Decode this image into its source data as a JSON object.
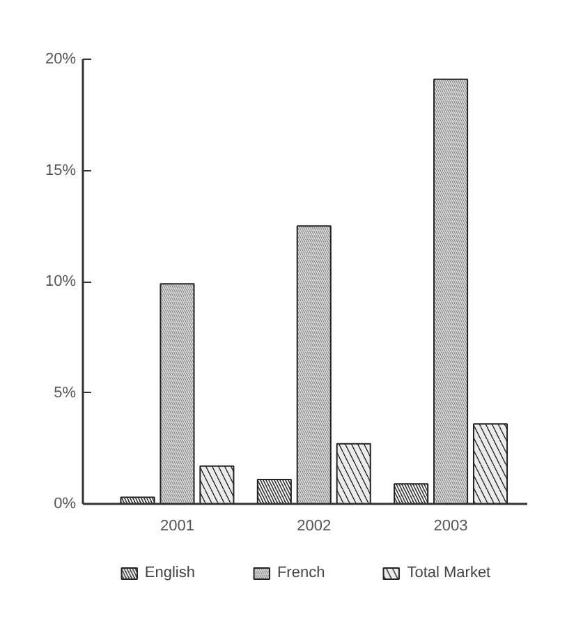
{
  "chart_data": {
    "type": "bar",
    "categories": [
      "2001",
      "2002",
      "2003"
    ],
    "series": [
      {
        "name": "English",
        "color": "#333333",
        "values": [
          0.3,
          1.1,
          0.9
        ]
      },
      {
        "name": "French",
        "color": "#d9d9d9",
        "values": [
          9.9,
          12.5,
          19.1
        ]
      },
      {
        "name": "Total Market",
        "color": "#ececec",
        "values": [
          1.7,
          2.7,
          3.6
        ]
      }
    ],
    "ylim": [
      0,
      20
    ],
    "yticks": [
      {
        "value": 0,
        "label": "0%"
      },
      {
        "value": 5,
        "label": "5%"
      },
      {
        "value": 10,
        "label": "10%"
      },
      {
        "value": 15,
        "label": "15%"
      },
      {
        "value": 20,
        "label": "20%"
      }
    ],
    "grid": false,
    "legend": "bottom"
  }
}
